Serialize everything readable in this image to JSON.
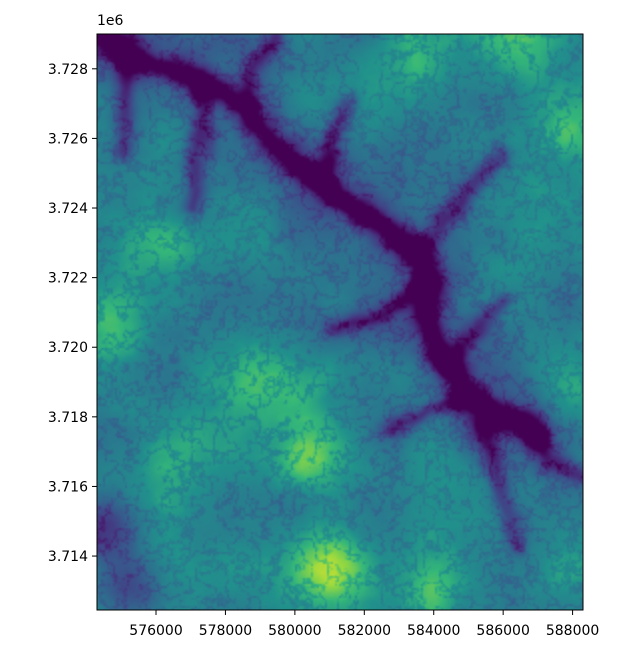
{
  "chart_data": {
    "type": "heatmap",
    "title": "",
    "xlabel": "",
    "ylabel": "",
    "colormap": "viridis",
    "colorbar": false,
    "grid": false,
    "xlim": [
      574300,
      588300
    ],
    "ylim": [
      3712450,
      3729000
    ],
    "y_offset_label": "1e6",
    "x_ticks": [
      576000,
      578000,
      580000,
      582000,
      584000,
      586000,
      588000
    ],
    "x_tick_labels": [
      "576000",
      "578000",
      "580000",
      "582000",
      "584000",
      "586000",
      "588000"
    ],
    "y_ticks": [
      3.714,
      3.716,
      3.718,
      3.72,
      3.722,
      3.724,
      3.726,
      3.728
    ],
    "y_tick_labels": [
      "3.714",
      "3.716",
      "3.718",
      "3.720",
      "3.722",
      "3.724",
      "3.726",
      "3.728"
    ],
    "value_scale": "normalized 0 (low, dark purple) to 1 (high, yellow)",
    "features": {
      "main_river": [
        [
          574300,
          3728900
        ],
        [
          575500,
          3728300
        ],
        [
          576800,
          3727900
        ],
        [
          577800,
          3727400
        ],
        [
          578500,
          3726900
        ],
        [
          579200,
          3726000
        ],
        [
          580000,
          3725300
        ],
        [
          581000,
          3724600
        ],
        [
          582000,
          3723800
        ],
        [
          583000,
          3723000
        ],
        [
          583700,
          3722500
        ],
        [
          583900,
          3721700
        ],
        [
          583800,
          3720800
        ],
        [
          584100,
          3719900
        ],
        [
          584500,
          3719300
        ],
        [
          584800,
          3718600
        ],
        [
          585400,
          3718200
        ],
        [
          586200,
          3717900
        ],
        [
          586800,
          3717600
        ]
      ],
      "tributaries": [
        [
          [
            577400,
            3727300
          ],
          [
            577300,
            3726200
          ],
          [
            577100,
            3725200
          ],
          [
            576900,
            3724100
          ]
        ],
        [
          [
            578600,
            3727000
          ],
          [
            578900,
            3728200
          ],
          [
            579300,
            3729000
          ]
        ],
        [
          [
            580800,
            3724800
          ],
          [
            581000,
            3726000
          ],
          [
            581500,
            3727100
          ]
        ],
        [
          [
            583400,
            3722700
          ],
          [
            584200,
            3723600
          ],
          [
            584900,
            3724500
          ],
          [
            585800,
            3725400
          ]
        ],
        [
          [
            583800,
            3721800
          ],
          [
            583000,
            3721300
          ],
          [
            582100,
            3720900
          ],
          [
            581200,
            3720700
          ]
        ],
        [
          [
            586500,
            3717700
          ],
          [
            587200,
            3716800
          ],
          [
            588300,
            3716300
          ]
        ],
        [
          [
            585300,
            3718200
          ],
          [
            585600,
            3716800
          ],
          [
            586100,
            3715500
          ],
          [
            586400,
            3714400
          ]
        ],
        [
          [
            584600,
            3718500
          ],
          [
            583700,
            3718200
          ],
          [
            582900,
            3717700
          ]
        ],
        [
          [
            584300,
            3719500
          ],
          [
            585200,
            3720500
          ],
          [
            586000,
            3721400
          ]
        ],
        [
          [
            575200,
            3728300
          ],
          [
            575100,
            3726800
          ],
          [
            575000,
            3725700
          ]
        ]
      ],
      "peaks": [
        {
          "x": 581000,
          "y": 3713650,
          "value": 1.0
        },
        {
          "x": 580500,
          "y": 3716900,
          "value": 0.93
        },
        {
          "x": 574600,
          "y": 3720500,
          "value": 0.82
        },
        {
          "x": 576200,
          "y": 3722900,
          "value": 0.8
        },
        {
          "x": 583400,
          "y": 3728500,
          "value": 0.82
        },
        {
          "x": 578500,
          "y": 3719200,
          "value": 0.85
        },
        {
          "x": 580000,
          "y": 3718800,
          "value": 0.8
        },
        {
          "x": 587800,
          "y": 3726500,
          "value": 0.78
        },
        {
          "x": 586700,
          "y": 3728400,
          "value": 0.76
        },
        {
          "x": 584000,
          "y": 3713200,
          "value": 0.8
        },
        {
          "x": 588000,
          "y": 3718600,
          "value": 0.74
        },
        {
          "x": 576800,
          "y": 3716800,
          "value": 0.72
        }
      ],
      "lowlands": [
        {
          "x": 574500,
          "y": 3714800,
          "value": 0.18
        },
        {
          "x": 575200,
          "y": 3713200,
          "value": 0.2
        }
      ]
    }
  }
}
